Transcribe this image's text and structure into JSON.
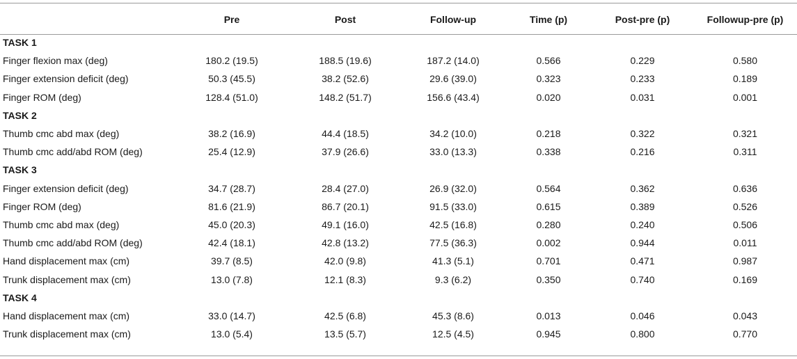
{
  "table": {
    "headers": [
      "",
      "Pre",
      "Post",
      "Follow-up",
      "Time (p)",
      "Post-pre (p)",
      "Followup-pre (p)"
    ],
    "sections": [
      {
        "title": "TASK 1",
        "rows": [
          [
            "Finger flexion max (deg)",
            "180.2 (19.5)",
            "188.5 (19.6)",
            "187.2 (14.0)",
            "0.566",
            "0.229",
            "0.580"
          ],
          [
            "Finger extension deficit (deg)",
            "50.3 (45.5)",
            "38.2 (52.6)",
            "29.6 (39.0)",
            "0.323",
            "0.233",
            "0.189"
          ],
          [
            "Finger ROM (deg)",
            "128.4 (51.0)",
            "148.2 (51.7)",
            "156.6 (43.4)",
            "0.020",
            "0.031",
            "0.001"
          ]
        ]
      },
      {
        "title": "TASK 2",
        "rows": [
          [
            "Thumb cmc abd max (deg)",
            "38.2 (16.9)",
            "44.4 (18.5)",
            "34.2 (10.0)",
            "0.218",
            "0.322",
            "0.321"
          ],
          [
            "Thumb cmc add/abd ROM (deg)",
            "25.4 (12.9)",
            "37.9 (26.6)",
            "33.0 (13.3)",
            "0.338",
            "0.216",
            "0.311"
          ]
        ]
      },
      {
        "title": "TASK 3",
        "rows": [
          [
            "Finger extension deficit (deg)",
            "34.7 (28.7)",
            "28.4 (27.0)",
            "26.9 (32.0)",
            "0.564",
            "0.362",
            "0.636"
          ],
          [
            "Finger ROM (deg)",
            "81.6 (21.9)",
            "86.7 (20.1)",
            "91.5 (33.0)",
            "0.615",
            "0.389",
            "0.526"
          ],
          [
            "Thumb cmc abd max (deg)",
            "45.0 (20.3)",
            "49.1 (16.0)",
            "42.5 (16.8)",
            "0.280",
            "0.240",
            "0.506"
          ],
          [
            "Thumb cmc add/abd ROM (deg)",
            "42.4 (18.1)",
            "42.8 (13.2)",
            "77.5 (36.3)",
            "0.002",
            "0.944",
            "0.011"
          ],
          [
            "Hand displacement max (cm)",
            "39.7 (8.5)",
            "42.0 (9.8)",
            "41.3 (5.1)",
            "0.701",
            "0.471",
            "0.987"
          ],
          [
            "Trunk displacement max (cm)",
            "13.0 (7.8)",
            "12.1 (8.3)",
            "9.3 (6.2)",
            "0.350",
            "0.740",
            "0.169"
          ]
        ]
      },
      {
        "title": "TASK 4",
        "rows": [
          [
            "Hand displacement max (cm)",
            "33.0 (14.7)",
            "42.5 (6.8)",
            "45.3 (8.6)",
            "0.013",
            "0.046",
            "0.043"
          ],
          [
            "Trunk displacement max (cm)",
            "13.0 (5.4)",
            "13.5 (5.7)",
            "12.5 (4.5)",
            "0.945",
            "0.800",
            "0.770"
          ]
        ]
      }
    ]
  }
}
